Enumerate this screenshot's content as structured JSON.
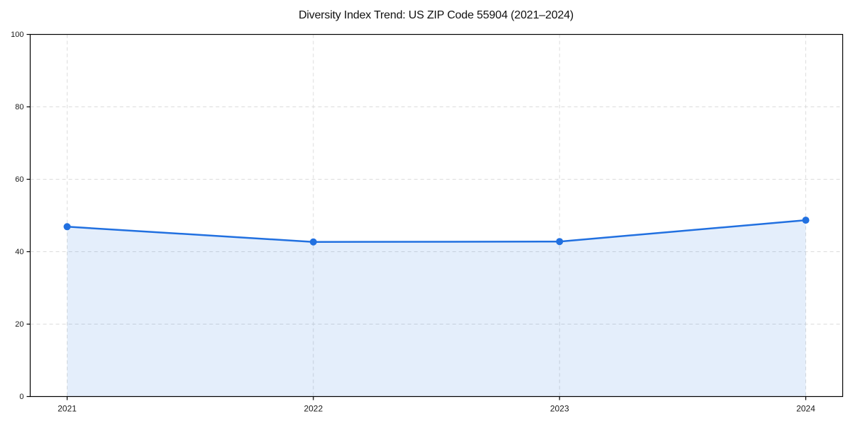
{
  "chart_data": {
    "type": "area",
    "title": "Diversity Index Trend: US ZIP Code 55904 (2021–2024)",
    "categories": [
      "2021",
      "2022",
      "2023",
      "2024"
    ],
    "series": [
      {
        "name": "Diversity Index",
        "values": [
          46.9,
          42.7,
          42.8,
          48.7
        ]
      }
    ],
    "xlabel": "",
    "ylabel": "",
    "ylim": [
      0,
      100
    ],
    "yticks": [
      0,
      20,
      40,
      60,
      80,
      100
    ],
    "grid": true,
    "grid_style": "dashed",
    "legend": "none",
    "line_color": "#2170e0",
    "marker": "circle",
    "fill_under_line": true,
    "fill_opacity": 0.12,
    "grid_color": "#dcdcdc",
    "axis_color": "#000000",
    "background_color": "#ffffff"
  }
}
